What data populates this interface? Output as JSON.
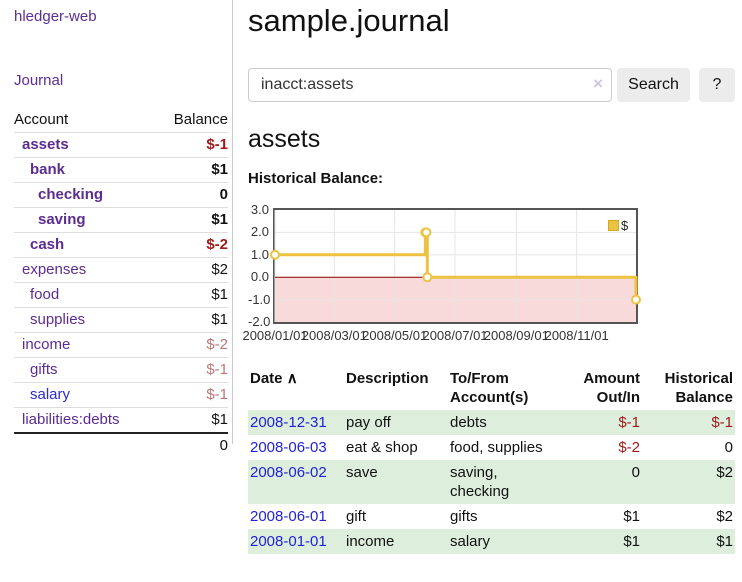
{
  "app": {
    "brand": "hledger-web",
    "nav_journal": "Journal"
  },
  "colors": {
    "link_purple": "#5c2d91",
    "link_blue": "#2a2ad4",
    "date_blue": "#2222d6",
    "negative_red": "#9e1a1a",
    "negative_soft_red": "#bb7777",
    "row_stripe_green": "#ddeedd",
    "series_gold": "#edc240",
    "negative_region_pink": "#f9dada",
    "zero_line_red": "#8b0000",
    "button_gray": "#ececec"
  },
  "sidebar": {
    "accounts_table": {
      "headers": {
        "account": "Account",
        "balance": "Balance"
      },
      "rows": [
        {
          "name": "assets",
          "balance": "$-1",
          "indent": 0,
          "bold": true,
          "negative": true,
          "link": "purple"
        },
        {
          "name": "bank",
          "balance": "$1",
          "indent": 1,
          "bold": true,
          "negative": false,
          "link": "purple"
        },
        {
          "name": "checking",
          "balance": "0",
          "indent": 2,
          "bold": true,
          "negative": false,
          "link": "purple"
        },
        {
          "name": "saving",
          "balance": "$1",
          "indent": 2,
          "bold": true,
          "negative": false,
          "link": "purple"
        },
        {
          "name": "cash",
          "balance": "$-2",
          "indent": 1,
          "bold": true,
          "negative": true,
          "link": "purple"
        },
        {
          "name": "expenses",
          "balance": "$2",
          "indent": 0,
          "bold": false,
          "negative": false,
          "link": "purple"
        },
        {
          "name": "food",
          "balance": "$1",
          "indent": 1,
          "bold": false,
          "negative": false,
          "link": "purple"
        },
        {
          "name": "supplies",
          "balance": "$1",
          "indent": 1,
          "bold": false,
          "negative": false,
          "link": "purple"
        },
        {
          "name": "income",
          "balance": "$-2",
          "indent": 0,
          "bold": false,
          "negative": true,
          "link": "purple"
        },
        {
          "name": "gifts",
          "balance": "$-1",
          "indent": 1,
          "bold": false,
          "negative": true,
          "link": "purple"
        },
        {
          "name": "salary",
          "balance": "$-1",
          "indent": 1,
          "bold": false,
          "negative": true,
          "link": "blue"
        },
        {
          "name": "liabilities:debts",
          "balance": "$1",
          "indent": 0,
          "bold": false,
          "negative": false,
          "link": "purple"
        }
      ],
      "total": "0"
    }
  },
  "header": {
    "title": "sample.journal"
  },
  "search": {
    "value": "inacct:assets",
    "clear_icon": "×",
    "button": "Search",
    "help_button": "?"
  },
  "main": {
    "account_title": "assets",
    "chart_title": "Historical Balance:"
  },
  "chart_data": {
    "type": "line",
    "step": true,
    "title": "Historical Balance:",
    "series": [
      {
        "name": "$",
        "color": "#edc240",
        "points": [
          {
            "date": "2008-01-01",
            "value": 1
          },
          {
            "date": "2008-06-01",
            "value": 2
          },
          {
            "date": "2008-06-02",
            "value": 2
          },
          {
            "date": "2008-06-03",
            "value": 0
          },
          {
            "date": "2008-12-31",
            "value": -1
          }
        ]
      }
    ],
    "x_range": [
      "2008-01-01",
      "2008-12-31"
    ],
    "ylim": [
      -2,
      3
    ],
    "y_ticks": [
      "3.0",
      "2.0",
      "1.0",
      "0.0",
      "-1.0",
      "-2.0"
    ],
    "x_ticks": [
      "2008/01/01",
      "2008/03/01",
      "2008/05/01",
      "2008/07/01",
      "2008/09/01",
      "2008/11/01"
    ],
    "grid": true,
    "legend": {
      "label": "$",
      "position": "top-right"
    },
    "negative_region_color": "#f9dada",
    "zero_line_color": "#8b0000"
  },
  "register_table": {
    "headers": {
      "date": "Date",
      "date_sort_icon": "∧",
      "description": "Description",
      "accounts": "To/From Account(s)",
      "amount": "Amount Out/In",
      "balance": "Historical Balance"
    },
    "rows": [
      {
        "date": "2008-12-31",
        "description": "pay off",
        "accounts": "debts",
        "amount": "$-1",
        "amount_negative": true,
        "balance": "$-1",
        "balance_negative": true,
        "striped": true
      },
      {
        "date": "2008-06-03",
        "description": "eat & shop",
        "accounts": "food, supplies",
        "amount": "$-2",
        "amount_negative": true,
        "balance": "0",
        "balance_negative": false,
        "striped": false
      },
      {
        "date": "2008-06-02",
        "description": "save",
        "accounts": "saving, checking",
        "amount": "0",
        "amount_negative": false,
        "balance": "$2",
        "balance_negative": false,
        "striped": true
      },
      {
        "date": "2008-06-01",
        "description": "gift",
        "accounts": "gifts",
        "amount": "$1",
        "amount_negative": false,
        "balance": "$2",
        "balance_negative": false,
        "striped": false
      },
      {
        "date": "2008-01-01",
        "description": "income",
        "accounts": "salary",
        "amount": "$1",
        "amount_negative": false,
        "balance": "$1",
        "balance_negative": false,
        "striped": true
      }
    ]
  }
}
